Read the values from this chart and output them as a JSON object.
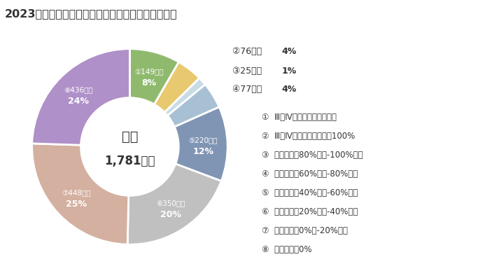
{
  "title": "2023年度末時点での修繕等措置が完了した自治体数",
  "center_line1": "橋梁",
  "center_line2": "1,781団体",
  "segments": [
    {
      "idx": 1,
      "label": "①149団体",
      "pct": "8%",
      "count": 149,
      "color": "#8fba6e",
      "show_inside": true
    },
    {
      "idx": 2,
      "label": "②76団体",
      "pct": "4%",
      "count": 76,
      "color": "#e8c970",
      "show_inside": false
    },
    {
      "idx": 3,
      "label": "③25団体",
      "pct": "1%",
      "count": 25,
      "color": "#c8dce8",
      "show_inside": false
    },
    {
      "idx": 4,
      "label": "④77団体",
      "pct": "4%",
      "count": 77,
      "color": "#a8c0d4",
      "show_inside": false
    },
    {
      "idx": 5,
      "label": "⑤220団体",
      "pct": "12%",
      "count": 220,
      "color": "#8095b4",
      "show_inside": true
    },
    {
      "idx": 6,
      "label": "⑥350団体",
      "pct": "20%",
      "count": 350,
      "color": "#c0c0c0",
      "show_inside": true
    },
    {
      "idx": 7,
      "label": "⑦448団体",
      "pct": "25%",
      "count": 448,
      "color": "#d4b0a0",
      "show_inside": true
    },
    {
      "idx": 8,
      "label": "⑧436団体",
      "pct": "24%",
      "count": 436,
      "color": "#b090c8",
      "show_inside": true
    }
  ],
  "ext_labels": [
    {
      "text": "②76団体",
      "pct": "4%"
    },
    {
      "text": "③25団体",
      "pct": "1%"
    },
    {
      "text": "④77団体",
      "pct": "4%"
    }
  ],
  "legend_items": [
    {
      "num": "①",
      "text": "Ⅲ・Ⅳの施設が存在しない"
    },
    {
      "num": "②",
      "text": "Ⅲ・Ⅳ施設の措置完了率100%"
    },
    {
      "num": "③",
      "text": "措置完了率80%以上-100%未満"
    },
    {
      "num": "④",
      "text": "措置完了率60%以上-80%未満"
    },
    {
      "num": "⑤",
      "text": "措置完了率40%以上-60%未満"
    },
    {
      "num": "⑥",
      "text": "措置完了率20%以上-40%未満"
    },
    {
      "num": "⑦",
      "text": "措置完了率0%超-20%未満"
    },
    {
      "num": "⑧",
      "text": "措置完了率0%"
    }
  ],
  "bg_color": "#ffffff",
  "text_color": "#333333"
}
